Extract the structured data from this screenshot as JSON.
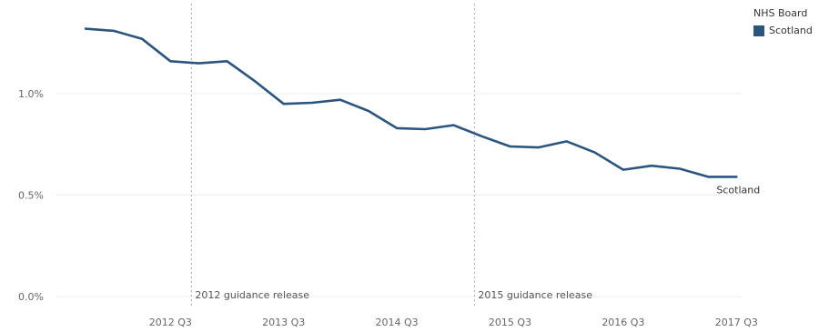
{
  "colors": {
    "series": "#2b557f",
    "grid": "#ececec",
    "refline": "#aaaaaa",
    "tick": "#666666"
  },
  "legend": {
    "title": "NHS Board",
    "items": [
      {
        "label": "Scotland",
        "color": "#2b557f"
      }
    ]
  },
  "chart_data": {
    "type": "line",
    "title": "",
    "xlabel": "",
    "ylabel": "",
    "grid": true,
    "legend_position": "top-right",
    "x": [
      "2011 Q4",
      "2012 Q1",
      "2012 Q2",
      "2012 Q3",
      "2012 Q4",
      "2013 Q1",
      "2013 Q2",
      "2013 Q3",
      "2013 Q4",
      "2014 Q1",
      "2014 Q2",
      "2014 Q3",
      "2014 Q4",
      "2015 Q1",
      "2015 Q2",
      "2015 Q3",
      "2015 Q4",
      "2016 Q1",
      "2016 Q2",
      "2016 Q3",
      "2016 Q4",
      "2017 Q1",
      "2017 Q2",
      "2017 Q3"
    ],
    "x_tick_labels": [
      "2012 Q3",
      "2013 Q3",
      "2014 Q3",
      "2015 Q3",
      "2016 Q3",
      "2017 Q3"
    ],
    "y_ticks": [
      {
        "value": 0.0,
        "label": "0.0%"
      },
      {
        "value": 0.5,
        "label": "0.5%"
      },
      {
        "value": 1.0,
        "label": "1.0%"
      }
    ],
    "ylim": [
      0,
      1.36
    ],
    "series": [
      {
        "name": "Scotland",
        "color": "#2b557f",
        "values": [
          1.32,
          1.31,
          1.27,
          1.16,
          1.15,
          1.16,
          1.06,
          0.95,
          0.955,
          0.97,
          0.915,
          0.83,
          0.825,
          0.845,
          0.79,
          0.74,
          0.735,
          0.765,
          0.71,
          0.625,
          0.645,
          0.63,
          0.59,
          0.59
        ]
      }
    ],
    "end_label": "Scotland",
    "reference_lines": [
      {
        "x": "2012 Q4",
        "label": "2012 guidance release"
      },
      {
        "x": "2015 Q2",
        "label": "2015 guidance release"
      }
    ]
  }
}
